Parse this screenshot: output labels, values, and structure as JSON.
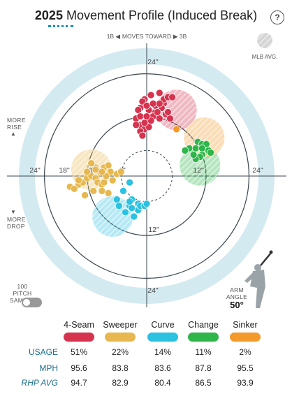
{
  "header": {
    "year": "2025",
    "title": "Movement Profile (Induced Break)",
    "help_label": "?"
  },
  "direction": {
    "left": "1B ◀",
    "middle": "MOVES TOWARD",
    "right": "▶ 3B"
  },
  "legend_avg": "MLB AVG.",
  "side_labels": {
    "more_rise_1": "MORE",
    "more_rise_2": "RISE",
    "more_drop_1": "MORE",
    "more_drop_2": "DROP"
  },
  "sample_label_1": "100 PITCH",
  "sample_label_2": "SAMPLE",
  "arm_angle": {
    "label_1": "ARM",
    "label_2": "ANGLE",
    "value": "50°"
  },
  "chart_data": {
    "type": "scatter",
    "x_label": "horizontal break (in)",
    "y_label": "induced vertical break (in)",
    "xlim": [
      -24,
      24
    ],
    "ylim": [
      -24,
      24
    ],
    "ring_labels": [
      "6\"",
      "12\"",
      "18\"",
      "24\""
    ],
    "axis_tick_labels": {
      "top": "24\"",
      "bottom": "24\"",
      "left": "24\"",
      "right": "24\"",
      "left_18": "18\"",
      "left_12": "12\"",
      "left_6": "6\"",
      "right_12": "12\"",
      "bottom_12": "12\""
    },
    "series": [
      {
        "name": "4-Seam",
        "color": "#d6334f",
        "avg": {
          "x": 2.5,
          "y": 16
        },
        "mlb_avg": {
          "x": 7,
          "y": 15.5
        },
        "points": [
          [
            -0.5,
            18
          ],
          [
            1,
            19
          ],
          [
            3,
            19.5
          ],
          [
            4,
            17
          ],
          [
            2,
            15
          ],
          [
            0.5,
            15.5
          ],
          [
            -1.5,
            16
          ],
          [
            -2.5,
            13.5
          ],
          [
            -1.5,
            12
          ],
          [
            -0.5,
            11
          ],
          [
            0.5,
            11.5
          ],
          [
            1.5,
            14
          ],
          [
            3,
            13.5
          ],
          [
            4.5,
            14.5
          ],
          [
            5.5,
            13.5
          ],
          [
            2,
            16.5
          ],
          [
            -1,
            17.5
          ],
          [
            -2,
            15.5
          ],
          [
            0,
            16.5
          ],
          [
            1.5,
            17
          ],
          [
            3.5,
            16
          ],
          [
            1,
            13
          ],
          [
            -1.5,
            14
          ],
          [
            -2.5,
            12
          ],
          [
            -1.5,
            10.5
          ],
          [
            -0.5,
            12.5
          ],
          [
            2.5,
            15
          ],
          [
            4,
            18
          ],
          [
            5,
            18.5
          ],
          [
            6,
            18.5
          ],
          [
            0,
            14
          ],
          [
            3,
            17
          ],
          [
            -1,
            9.5
          ],
          [
            5,
            15
          ]
        ]
      },
      {
        "name": "Sweeper",
        "color": "#e7b84f",
        "avg": {
          "x": -11,
          "y": 0
        },
        "mlb_avg": {
          "x": -13,
          "y": 1.5
        },
        "points": [
          [
            -18,
            -2.5
          ],
          [
            -16,
            -2
          ],
          [
            -15,
            -1.5
          ],
          [
            -14,
            -0.5
          ],
          [
            -13,
            0
          ],
          [
            -12,
            -0.5
          ],
          [
            -11.5,
            -1.5
          ],
          [
            -10.5,
            -2
          ],
          [
            -12.5,
            -3.5
          ],
          [
            -10.5,
            -3.5
          ],
          [
            -10,
            -1.5
          ],
          [
            -8,
            -1
          ],
          [
            -7,
            0.5
          ],
          [
            -8.5,
            1
          ],
          [
            -9.5,
            0
          ],
          [
            -12,
            2
          ],
          [
            -13,
            3
          ],
          [
            -10,
            2
          ],
          [
            -9,
            2.5
          ],
          [
            -11,
            1
          ],
          [
            -14,
            1
          ],
          [
            -16,
            -1
          ],
          [
            -17,
            -3
          ],
          [
            -12,
            1.5
          ],
          [
            -6,
            1
          ],
          [
            -9,
            -4
          ],
          [
            -14.5,
            -4.5
          ],
          [
            -10.5,
            1
          ]
        ]
      },
      {
        "name": "Curve",
        "color": "#2bc1e1",
        "avg": {
          "x": -7,
          "y": -9
        },
        "mlb_avg": {
          "x": -8,
          "y": -9.5
        },
        "points": [
          [
            -4,
            -1.5
          ],
          [
            -5.5,
            -3.5
          ],
          [
            -3.5,
            -5.5
          ],
          [
            -4,
            -7
          ],
          [
            -2,
            -6.5
          ],
          [
            -2,
            -8
          ],
          [
            -3,
            -9.5
          ],
          [
            -1.5,
            -7
          ],
          [
            -0.5,
            -7
          ],
          [
            0,
            -6.5
          ],
          [
            -3.5,
            -7.5
          ],
          [
            -5,
            -8.5
          ],
          [
            -4,
            -6
          ],
          [
            -7,
            -5.5
          ],
          [
            -6.5,
            -7
          ]
        ]
      },
      {
        "name": "Change",
        "color": "#2fb54a",
        "avg": {
          "x": 12,
          "y": 4
        },
        "mlb_avg": {
          "x": 12.5,
          "y": 2.5
        },
        "points": [
          [
            11,
            6
          ],
          [
            11.5,
            6.5
          ],
          [
            12,
            8
          ],
          [
            13,
            7.5
          ],
          [
            14,
            7.5
          ],
          [
            14.5,
            6
          ],
          [
            13,
            5
          ],
          [
            12.5,
            4.5
          ],
          [
            11.5,
            4
          ],
          [
            11,
            5
          ],
          [
            10,
            6.5
          ],
          [
            9,
            6
          ],
          [
            11.5,
            6.5
          ],
          [
            13,
            6.5
          ],
          [
            15,
            5.5
          ]
        ]
      },
      {
        "name": "Sinker",
        "color": "#f39a2b",
        "avg": {
          "x": 7,
          "y": 11
        },
        "mlb_avg": {
          "x": 13.5,
          "y": 9
        },
        "points": [
          [
            7,
            11
          ]
        ]
      }
    ]
  },
  "table": {
    "pitches": [
      {
        "name": "4-Seam",
        "color": "#d6334f",
        "usage": "51%",
        "mph": "95.6",
        "rhp_avg": "94.7"
      },
      {
        "name": "Sweeper",
        "color": "#e7b84f",
        "usage": "22%",
        "mph": "83.8",
        "rhp_avg": "82.9"
      },
      {
        "name": "Curve",
        "color": "#2bc1e1",
        "usage": "14%",
        "mph": "83.6",
        "rhp_avg": "80.4"
      },
      {
        "name": "Change",
        "color": "#2fb54a",
        "usage": "11%",
        "mph": "87.8",
        "rhp_avg": "86.5"
      },
      {
        "name": "Sinker",
        "color": "#f39a2b",
        "usage": "2%",
        "mph": "95.5",
        "rhp_avg": "93.9"
      }
    ],
    "row_labels": {
      "usage": "USAGE",
      "mph": "MPH",
      "rhp_avg": "RHP AVG"
    }
  }
}
